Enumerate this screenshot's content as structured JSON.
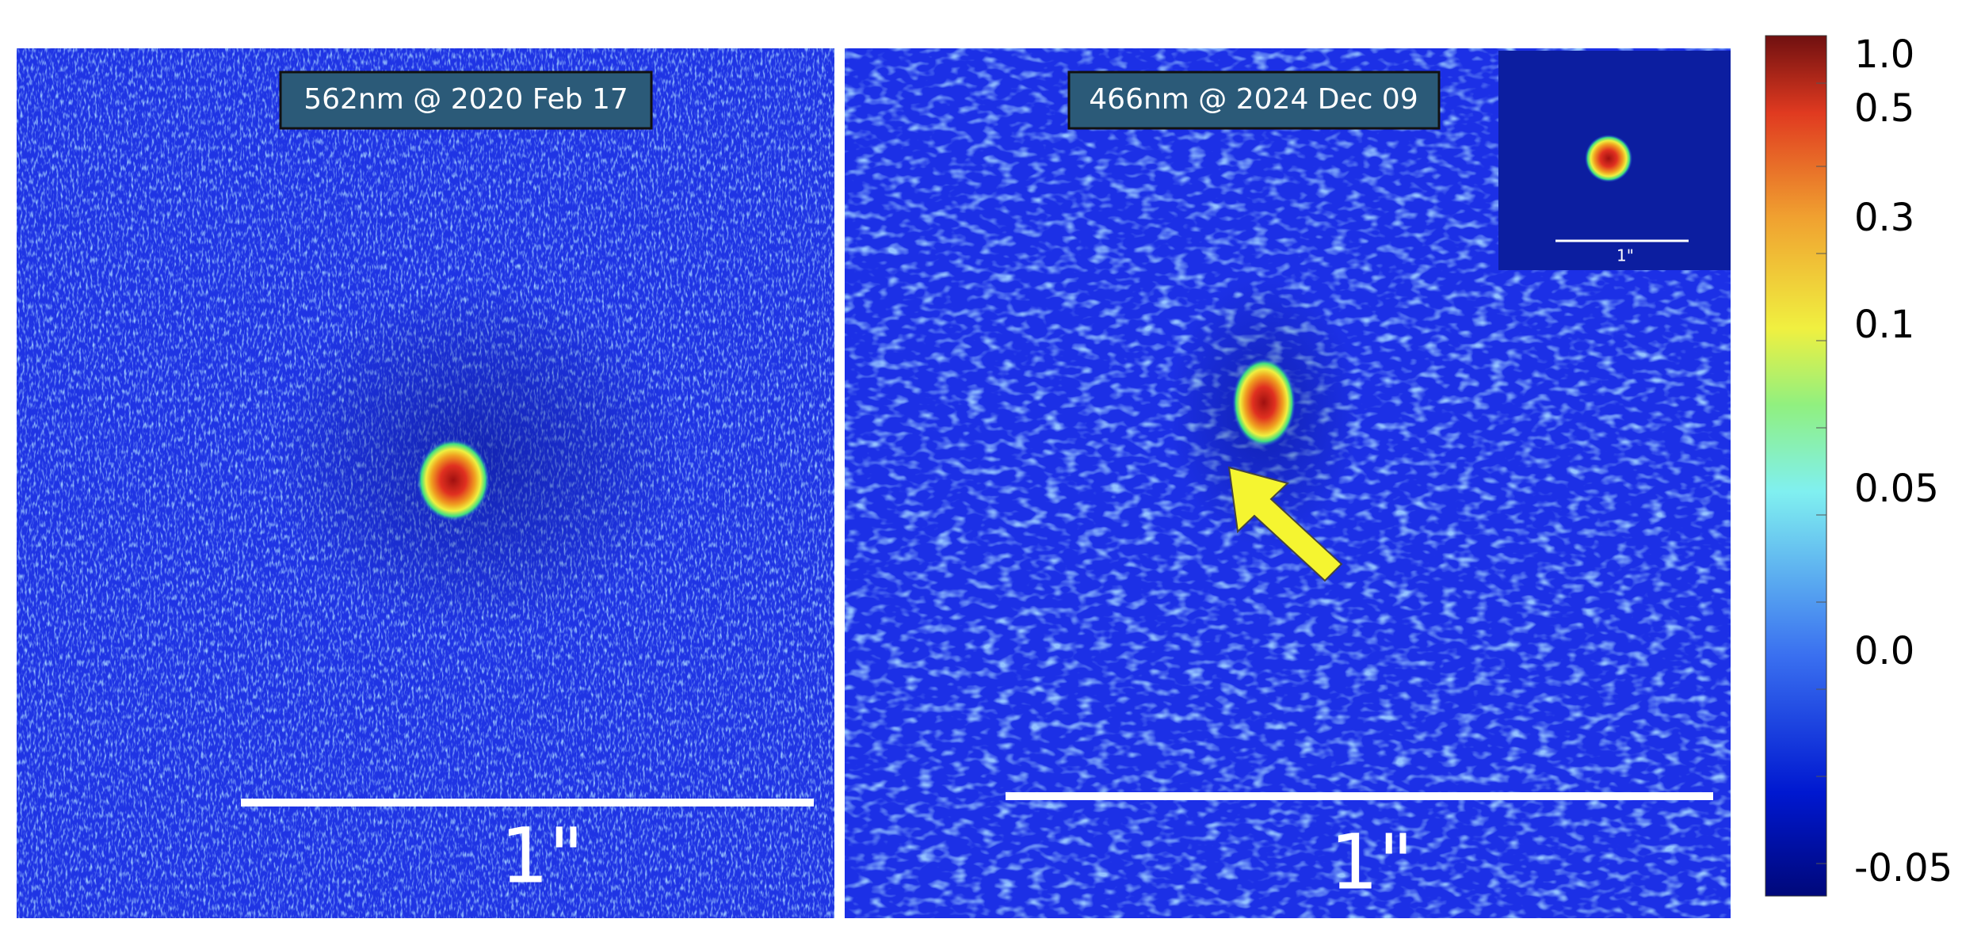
{
  "panels": [
    {
      "label": "562nm @ 2020 Feb 17",
      "scale_label": "1\""
    },
    {
      "label": "466nm @ 2024 Dec 09",
      "scale_label": "1\"",
      "inset_scale_label": "1\""
    }
  ],
  "colorbar": {
    "ticks": [
      "1.0",
      "0.5",
      "0.3",
      "0.1",
      "0.05",
      "0.0",
      "-0.05"
    ]
  }
}
